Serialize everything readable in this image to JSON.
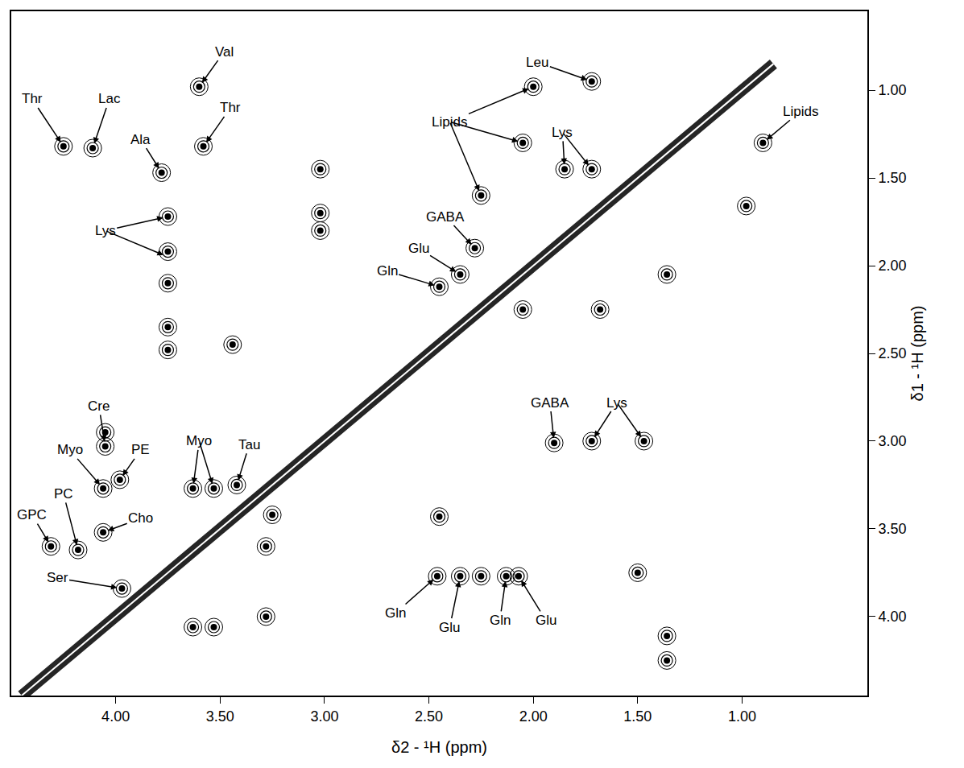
{
  "chart_data": {
    "type": "scatter",
    "x_label": "δ2 - ¹H (ppm)",
    "y_label": "δ1 - ¹H (ppm)",
    "xlim": [
      4.5,
      0.4
    ],
    "ylim": [
      4.45,
      0.55
    ],
    "xticks": [
      {
        "value": 4,
        "label": "4.00"
      },
      {
        "value": 3.5,
        "label": "3.50"
      },
      {
        "value": 3,
        "label": "3.00"
      },
      {
        "value": 2.5,
        "label": "2.50"
      },
      {
        "value": 2,
        "label": "2.00"
      },
      {
        "value": 1.5,
        "label": "1.50"
      },
      {
        "value": 1,
        "label": "1.00"
      }
    ],
    "yticks": [
      {
        "value": 1,
        "label": "1.00"
      },
      {
        "value": 1.5,
        "label": "1.50"
      },
      {
        "value": 2,
        "label": "2.00"
      },
      {
        "value": 2.5,
        "label": "2.50"
      },
      {
        "value": 3,
        "label": "3.00"
      },
      {
        "value": 3.5,
        "label": "3.50"
      },
      {
        "value": 4,
        "label": "4.00"
      }
    ],
    "grid": false,
    "color": "#000000",
    "diagonal": {
      "x": [
        4.45,
        4.0,
        3.5,
        3.0,
        2.5,
        2.0,
        1.5,
        1.2,
        0.85
      ],
      "y": [
        4.45,
        4.0,
        3.5,
        3.0,
        2.5,
        2.0,
        1.5,
        1.2,
        0.85
      ]
    },
    "peaks": {
      "x": [
        4.25,
        4.11,
        3.78,
        3.6,
        3.58,
        3.75,
        3.75,
        3.75,
        3.75,
        3.75,
        1.72,
        2.0,
        2.05,
        2.25,
        0.9,
        0.98,
        1.85,
        1.72,
        2.28,
        2.35,
        2.45,
        1.9,
        1.72,
        1.47,
        4.05,
        4.05,
        4.06,
        3.98,
        4.31,
        4.18,
        4.06,
        3.63,
        3.53,
        3.42,
        3.97,
        2.46,
        2.35,
        2.13,
        2.07,
        2.25,
        1.5,
        1.36,
        1.36,
        3.63,
        3.53,
        3.02,
        3.02,
        3.02,
        3.44,
        2.05,
        1.68,
        1.36,
        3.28,
        3.28,
        2.45,
        3.25
      ],
      "y": [
        1.32,
        1.33,
        1.47,
        0.98,
        1.32,
        1.72,
        1.92,
        2.1,
        2.35,
        2.48,
        0.95,
        0.98,
        1.3,
        1.6,
        1.3,
        1.66,
        1.45,
        1.45,
        1.9,
        2.05,
        2.12,
        3.01,
        3.0,
        3.0,
        3.03,
        2.95,
        3.27,
        3.22,
        3.6,
        3.62,
        3.52,
        3.27,
        3.27,
        3.25,
        3.84,
        3.77,
        3.77,
        3.77,
        3.77,
        3.77,
        3.75,
        4.11,
        4.25,
        4.06,
        4.06,
        1.45,
        1.7,
        1.8,
        2.45,
        2.25,
        2.25,
        2.05,
        3.6,
        4.0,
        3.43,
        3.42
      ]
    },
    "annotations": [
      {
        "text": "Thr",
        "points": [
          [
            4.25,
            1.32
          ]
        ],
        "at": [
          4.4,
          1.05
        ]
      },
      {
        "text": "Lac",
        "points": [
          [
            4.11,
            1.33
          ]
        ],
        "at": [
          4.03,
          1.05
        ]
      },
      {
        "text": "Val",
        "points": [
          [
            3.6,
            0.98
          ]
        ],
        "at": [
          3.48,
          0.78
        ]
      },
      {
        "text": "Thr",
        "points": [
          [
            3.58,
            1.32
          ]
        ],
        "at": [
          3.45,
          1.1
        ]
      },
      {
        "text": "Ala",
        "points": [
          [
            3.78,
            1.47
          ]
        ],
        "at": [
          3.88,
          1.28
        ]
      },
      {
        "text": "Lys",
        "points": [
          [
            3.75,
            1.72
          ],
          [
            3.75,
            1.95
          ]
        ],
        "at": [
          4.05,
          1.8
        ]
      },
      {
        "text": "Leu",
        "points": [
          [
            1.72,
            0.95
          ]
        ],
        "at": [
          1.98,
          0.84
        ]
      },
      {
        "text": "Lipids",
        "points": [
          [
            2.0,
            0.98
          ],
          [
            2.05,
            1.3
          ],
          [
            2.25,
            1.6
          ]
        ],
        "at": [
          2.4,
          1.18
        ]
      },
      {
        "text": "Lipids",
        "points": [
          [
            0.9,
            1.3
          ]
        ],
        "at": [
          0.72,
          1.12
        ]
      },
      {
        "text": "Lys",
        "points": [
          [
            1.85,
            1.45
          ],
          [
            1.72,
            1.45
          ]
        ],
        "at": [
          1.86,
          1.24
        ]
      },
      {
        "text": "GABA",
        "points": [
          [
            2.28,
            1.9
          ]
        ],
        "at": [
          2.42,
          1.72
        ]
      },
      {
        "text": "Glu",
        "points": [
          [
            2.35,
            2.05
          ]
        ],
        "at": [
          2.55,
          1.9
        ]
      },
      {
        "text": "Gln",
        "points": [
          [
            2.45,
            2.12
          ]
        ],
        "at": [
          2.7,
          2.03
        ]
      },
      {
        "text": "GABA",
        "points": [
          [
            1.9,
            3.01
          ]
        ],
        "at": [
          1.92,
          2.78
        ]
      },
      {
        "text": "Lys",
        "points": [
          [
            1.72,
            3.0
          ],
          [
            1.47,
            3.0
          ]
        ],
        "at": [
          1.6,
          2.78
        ]
      },
      {
        "text": "Cre",
        "points": [
          [
            4.05,
            3.03
          ]
        ],
        "at": [
          4.08,
          2.8
        ]
      },
      {
        "text": "Myo",
        "points": [
          [
            4.06,
            3.27
          ]
        ],
        "at": [
          4.22,
          3.05
        ]
      },
      {
        "text": "PE",
        "points": [
          [
            3.98,
            3.22
          ]
        ],
        "at": [
          3.88,
          3.05
        ]
      },
      {
        "text": "PC",
        "points": [
          [
            4.18,
            3.62
          ]
        ],
        "at": [
          4.25,
          3.3
        ]
      },
      {
        "text": "GPC",
        "points": [
          [
            4.31,
            3.6
          ]
        ],
        "at": [
          4.4,
          3.42
        ]
      },
      {
        "text": "Cho",
        "points": [
          [
            4.06,
            3.52
          ]
        ],
        "at": [
          3.88,
          3.44
        ]
      },
      {
        "text": "Myo",
        "points": [
          [
            3.63,
            3.27
          ],
          [
            3.53,
            3.27
          ]
        ],
        "at": [
          3.6,
          3.0
        ]
      },
      {
        "text": "Tau",
        "points": [
          [
            3.42,
            3.25
          ]
        ],
        "at": [
          3.36,
          3.02
        ]
      },
      {
        "text": "Ser",
        "points": [
          [
            3.97,
            3.84
          ]
        ],
        "at": [
          4.28,
          3.78
        ]
      },
      {
        "text": "Gln",
        "points": [
          [
            2.46,
            3.77
          ]
        ],
        "at": [
          2.66,
          3.98
        ]
      },
      {
        "text": "Glu",
        "points": [
          [
            2.35,
            3.77
          ]
        ],
        "at": [
          2.4,
          4.06
        ]
      },
      {
        "text": "Gln",
        "points": [
          [
            2.13,
            3.77
          ]
        ],
        "at": [
          2.16,
          4.02
        ]
      },
      {
        "text": "Glu",
        "points": [
          [
            2.07,
            3.77
          ]
        ],
        "at": [
          1.94,
          4.02
        ]
      }
    ]
  }
}
